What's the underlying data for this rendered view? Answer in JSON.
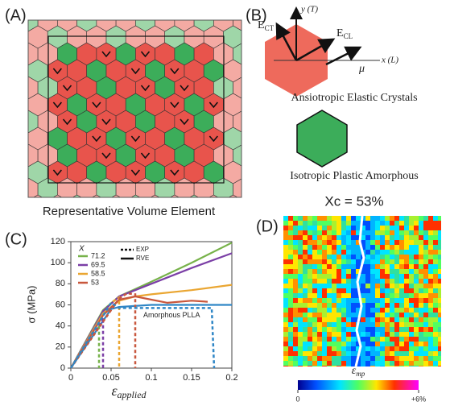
{
  "panel_a": {
    "label": "(A)",
    "caption": "Representative Volume Element"
  },
  "panel_b": {
    "label": "(B)",
    "y_axis": "y (T)",
    "x_axis": "x (L)",
    "e_ct": {
      "symbol": "E",
      "subscript": "CT"
    },
    "e_cl": {
      "symbol": "E",
      "subscript": "CL"
    },
    "mu": "μ",
    "crystal_caption": "Ansiotropic Elastic Crystals",
    "amorphous_caption": "Isotropic Plastic Amorphous",
    "crystallinity": "Xc = 53%"
  },
  "chart_data": {
    "type": "line",
    "panel_label": "(C)",
    "y_label": "σ (MPa)",
    "x_label": {
      "symbol": "ε",
      "subscript": "applied"
    },
    "legend_title": "X",
    "style_legend": [
      {
        "label": "EXP",
        "style": "dashed"
      },
      {
        "label": "RVE",
        "style": "solid"
      }
    ],
    "xlim": [
      0,
      0.2
    ],
    "xticks": [
      0,
      0.05,
      0.1,
      0.15,
      0.2
    ],
    "ylim": [
      0,
      120
    ],
    "yticks": [
      0,
      20,
      40,
      60,
      80,
      100,
      120
    ],
    "series": [
      {
        "name": "71.2",
        "color": "#77b24a",
        "style": "solid",
        "x": [
          0,
          0.04,
          0.06,
          0.08,
          0.1,
          0.15,
          0.2
        ],
        "values": [
          0,
          55,
          68,
          75,
          82,
          100,
          119
        ]
      },
      {
        "name": "69.5",
        "color": "#7b3fa6",
        "style": "solid",
        "x": [
          0,
          0.04,
          0.06,
          0.08,
          0.1,
          0.15,
          0.2
        ],
        "values": [
          0,
          54,
          68,
          74,
          80,
          95,
          109
        ]
      },
      {
        "name": "58.5",
        "color": "#eaa632",
        "style": "solid",
        "x": [
          0,
          0.04,
          0.06,
          0.08,
          0.1,
          0.15,
          0.2
        ],
        "values": [
          0,
          52,
          64,
          68,
          70,
          74,
          79
        ]
      },
      {
        "name": "53",
        "color": "#c8573d",
        "style": "solid",
        "x": [
          0,
          0.04,
          0.06,
          0.08,
          0.1,
          0.12,
          0.15,
          0.17
        ],
        "values": [
          0,
          50,
          65,
          68,
          65,
          62,
          64,
          63
        ]
      },
      {
        "name": "Amorphous PLLA",
        "color": "#2f86c6",
        "style": "solid",
        "x": [
          0,
          0.05,
          0.06,
          0.1,
          0.15,
          0.2
        ],
        "values": [
          0,
          56,
          58,
          60,
          60,
          60
        ]
      },
      {
        "name": "71.2",
        "color": "#77b24a",
        "style": "dashed",
        "x": [
          0,
          0.03,
          0.035,
          0.035
        ],
        "values": [
          0,
          35,
          40,
          0
        ]
      },
      {
        "name": "69.5",
        "color": "#7b3fa6",
        "style": "dashed",
        "x": [
          0,
          0.035,
          0.04,
          0.04
        ],
        "values": [
          0,
          42,
          48,
          0
        ]
      },
      {
        "name": "58.5",
        "color": "#eaa632",
        "style": "dashed",
        "x": [
          0,
          0.05,
          0.06,
          0.06
        ],
        "values": [
          0,
          62,
          67,
          0
        ]
      },
      {
        "name": "53",
        "color": "#c8573d",
        "style": "dashed",
        "x": [
          0,
          0.06,
          0.07,
          0.08,
          0.08
        ],
        "values": [
          0,
          66,
          71,
          70,
          0
        ]
      },
      {
        "name": "Amorphous PLLA",
        "color": "#2f86c6",
        "style": "dashed",
        "x": [
          0,
          0.05,
          0.06,
          0.175,
          0.178
        ],
        "values": [
          0,
          62,
          57,
          57,
          0
        ]
      }
    ]
  },
  "panel_d": {
    "label": "(D)",
    "colorbar_label": {
      "symbol": "ε",
      "subscript": "mp"
    },
    "colorbar_ticks": [
      0,
      {
        "value": 6,
        "label": "+6%"
      }
    ],
    "colorbar_range": [
      0,
      6
    ]
  }
}
